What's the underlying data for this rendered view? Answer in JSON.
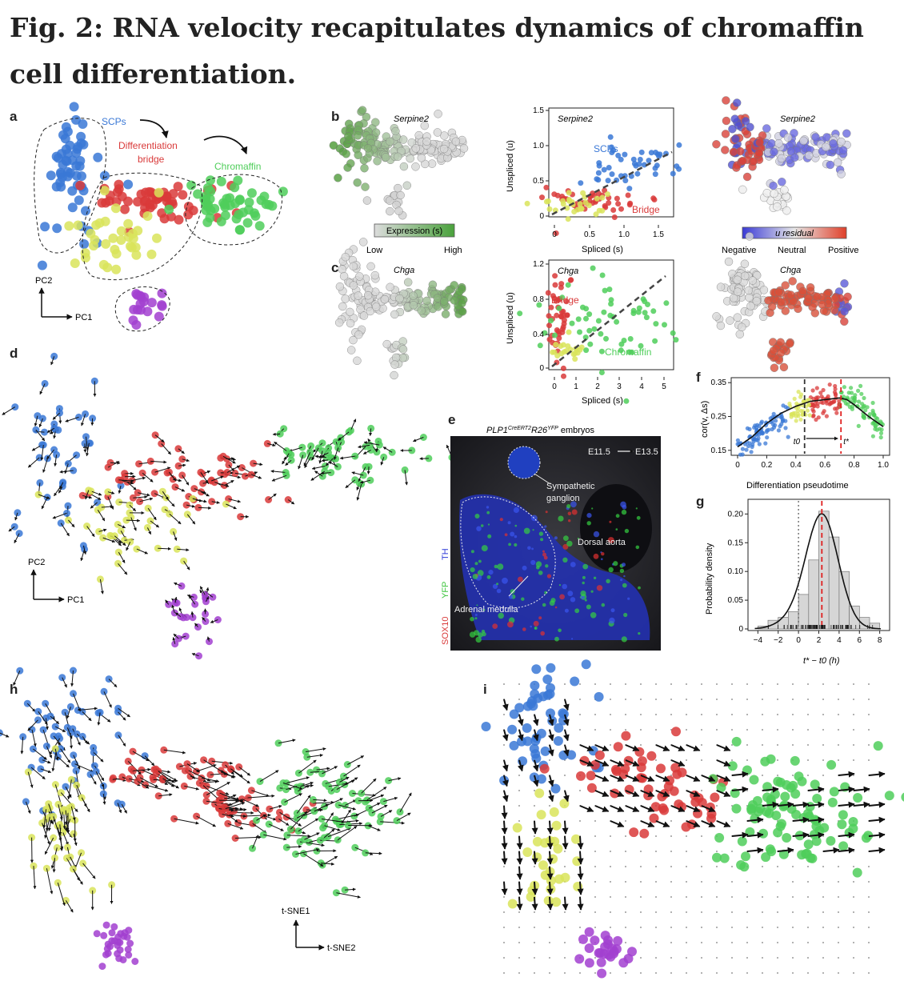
{
  "title": "Fig. 2: RNA velocity recapitulates dynamics of chromaffin cell differentiation.",
  "colors": {
    "scp": "#3a78d6",
    "bridge": "#d93a3a",
    "chromaffin": "#4fce5a",
    "yellow": "#d9e45a",
    "purple": "#a23fd0",
    "gray": "#c8c8c8",
    "green_expr": "#5da04a"
  },
  "panels": {
    "a": {
      "label": "a",
      "scps": "SCPs",
      "diff1": "Differentiation",
      "diff2": "bridge",
      "chromaffin": "Chromaffin",
      "pc2": "PC2",
      "pc1": "PC1"
    },
    "b": {
      "label": "b",
      "gene": "Serpine2",
      "expr_bar": "Expression (s)",
      "low": "Low",
      "high": "High",
      "scatter_gene": "Serpine2",
      "scps": "SCPs",
      "bridge": "Bridge",
      "ylabel": "Unspliced (u)",
      "xlabel": "Spliced (s)",
      "yticks": [
        "0",
        "0.5",
        "1.0",
        "1.5"
      ],
      "xticks": [
        "0",
        "0.5",
        "1.0",
        "1.5"
      ],
      "resid_gene": "Serpine2",
      "resid_bar": "u residual",
      "neg": "Negative",
      "neu": "Neutral",
      "pos": "Positive"
    },
    "c": {
      "label": "c",
      "gene": "Chga",
      "scatter_gene": "Chga",
      "bridge": "Bridge",
      "chromaffin": "Chromaffin",
      "ylabel": "Unspliced (u)",
      "xlabel": "Spliced (s)",
      "yticks": [
        "0",
        "0.4",
        "0.8",
        "1.2"
      ],
      "xticks": [
        "0",
        "1",
        "2",
        "3",
        "4",
        "5"
      ],
      "resid_gene": "Chga"
    },
    "d": {
      "label": "d",
      "pc2": "PC2",
      "pc1": "PC1"
    },
    "e": {
      "label": "e",
      "header": "PLP1",
      "sup1": "CreERT2",
      "mid": "R26",
      "sup2": "YFP",
      "tail": " embryos",
      "time1": "E11.5",
      "time2": "E13.5",
      "symp1": "Sympathetic",
      "symp2": "ganglion",
      "aorta": "Dorsal aorta",
      "adrenal": "Adrenal medulla",
      "ch_th": "TH",
      "ch_yfp": "YFP",
      "ch_sox": "SOX10"
    },
    "f": {
      "label": "f",
      "ylabel": "cor(v, Δs)",
      "xlabel": "Differentiation pseudotime",
      "yticks": [
        "0.15",
        "0.25",
        "0.35"
      ],
      "xticks": [
        "0",
        "0.2",
        "0.4",
        "0.6",
        "0.8",
        "1.0"
      ],
      "t0": "t0",
      "tstar": "t*"
    },
    "g": {
      "label": "g",
      "ylabel": "Probability density",
      "xlabel": "t* − t0 (h)",
      "yticks": [
        "0",
        "0.05",
        "0.10",
        "0.15",
        "0.20"
      ],
      "xticks": [
        "−4",
        "−2",
        "0",
        "2",
        "4",
        "6",
        "8"
      ]
    },
    "h": {
      "label": "h",
      "tsne1": "t-SNE1",
      "tsne2": "t-SNE2"
    },
    "i": {
      "label": "i"
    }
  },
  "chart_data": [
    {
      "type": "scatter",
      "panel": "f",
      "title": "",
      "xlabel": "Differentiation pseudotime",
      "ylabel": "cor(v, Δs)",
      "xlim": [
        0,
        1.0
      ],
      "ylim": [
        0.14,
        0.36
      ],
      "trend": {
        "x": [
          0,
          0.1,
          0.2,
          0.3,
          0.4,
          0.5,
          0.6,
          0.7,
          0.75,
          0.8,
          0.9,
          1.0
        ],
        "y": [
          0.16,
          0.19,
          0.23,
          0.26,
          0.28,
          0.295,
          0.3,
          0.305,
          0.3,
          0.285,
          0.25,
          0.22
        ]
      },
      "t0": 0.46,
      "tstar": 0.71
    },
    {
      "type": "bar",
      "panel": "g",
      "title": "",
      "xlabel": "t* − t0 (h)",
      "ylabel": "Probability density",
      "xlim": [
        -4.5,
        8.5
      ],
      "ylim": [
        0,
        0.22
      ],
      "bin_centers": [
        -3.5,
        -2.5,
        -1.5,
        -0.5,
        0.5,
        1.5,
        2.5,
        3.5,
        4.5,
        5.5,
        6.5,
        7.5
      ],
      "values": [
        0.005,
        0.015,
        0.02,
        0.03,
        0.06,
        0.12,
        0.205,
        0.16,
        0.1,
        0.04,
        0.02,
        0.01
      ],
      "mean_line": 2.3,
      "zero_line": 0
    }
  ]
}
